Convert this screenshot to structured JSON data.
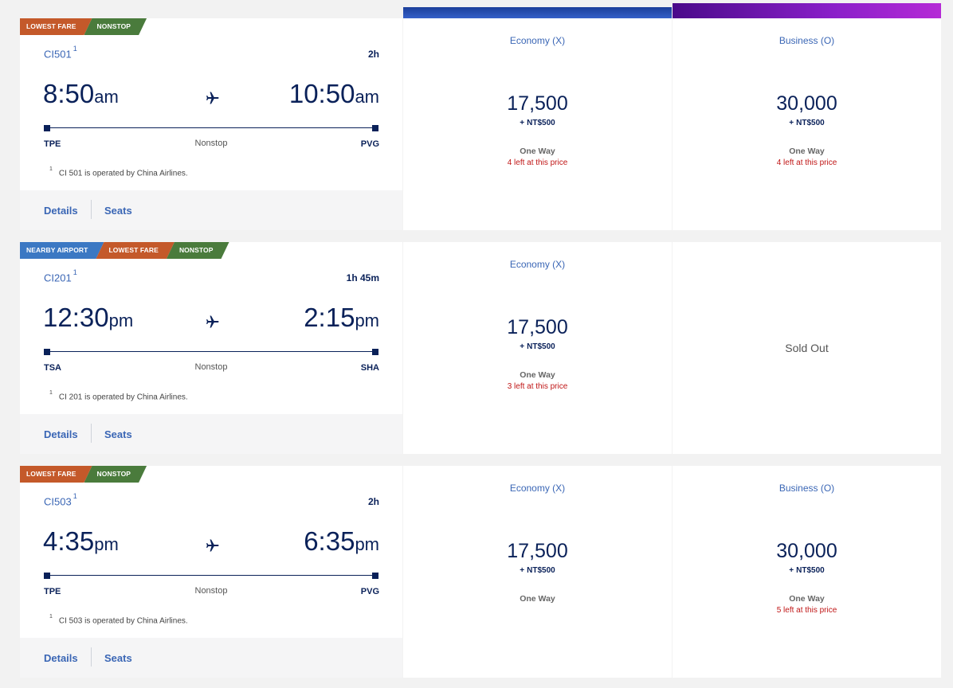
{
  "colors": {
    "navy": "#0a2159",
    "link": "#3a66b5",
    "alert": "#c01616",
    "nearby": "#3b78c3",
    "lowest": "#c4592a",
    "nonstop": "#4a7b3c"
  },
  "icons": {
    "plane": "airplane-icon"
  },
  "flights": [
    {
      "badges": [
        "LOWEST FARE",
        "NONSTOP"
      ],
      "flight_number": "CI501",
      "footnote_marker": "1",
      "duration": "2h",
      "departure": {
        "time": "8:50",
        "ampm": "am",
        "airport": "TPE"
      },
      "arrival": {
        "time": "10:50",
        "ampm": "am",
        "airport": "PVG"
      },
      "stops": "Nonstop",
      "operated_by": "CI 501 is operated by China Airlines.",
      "details_label": "Details",
      "seats_label": "Seats",
      "economy": {
        "name": "Economy (X)",
        "miles": "17,500",
        "plus": "+",
        "fee": "NT$500",
        "trip": "One Way",
        "seats_left": "4 left at this price"
      },
      "business": {
        "name": "Business (O)",
        "miles": "30,000",
        "plus": "+",
        "fee": "NT$500",
        "trip": "One Way",
        "seats_left": "4 left at this price"
      }
    },
    {
      "badges": [
        "NEARBY AIRPORT",
        "LOWEST FARE",
        "NONSTOP"
      ],
      "flight_number": "CI201",
      "footnote_marker": "1",
      "duration": "1h 45m",
      "departure": {
        "time": "12:30",
        "ampm": "pm",
        "airport": "TSA"
      },
      "arrival": {
        "time": "2:15",
        "ampm": "pm",
        "airport": "SHA"
      },
      "stops": "Nonstop",
      "operated_by": "CI 201 is operated by China Airlines.",
      "details_label": "Details",
      "seats_label": "Seats",
      "economy": {
        "name": "Economy (X)",
        "miles": "17,500",
        "plus": "+",
        "fee": "NT$500",
        "trip": "One Way",
        "seats_left": "3 left at this price"
      },
      "business": {
        "sold_out": "Sold Out"
      }
    },
    {
      "badges": [
        "LOWEST FARE",
        "NONSTOP"
      ],
      "flight_number": "CI503",
      "footnote_marker": "1",
      "duration": "2h",
      "departure": {
        "time": "4:35",
        "ampm": "pm",
        "airport": "TPE"
      },
      "arrival": {
        "time": "6:35",
        "ampm": "pm",
        "airport": "PVG"
      },
      "stops": "Nonstop",
      "operated_by": "CI 503 is operated by China Airlines.",
      "details_label": "Details",
      "seats_label": "Seats",
      "economy": {
        "name": "Economy (X)",
        "miles": "17,500",
        "plus": "+",
        "fee": "NT$500",
        "trip": "One Way"
      },
      "business": {
        "name": "Business (O)",
        "miles": "30,000",
        "plus": "+",
        "fee": "NT$500",
        "trip": "One Way",
        "seats_left": "5 left at this price"
      }
    }
  ]
}
